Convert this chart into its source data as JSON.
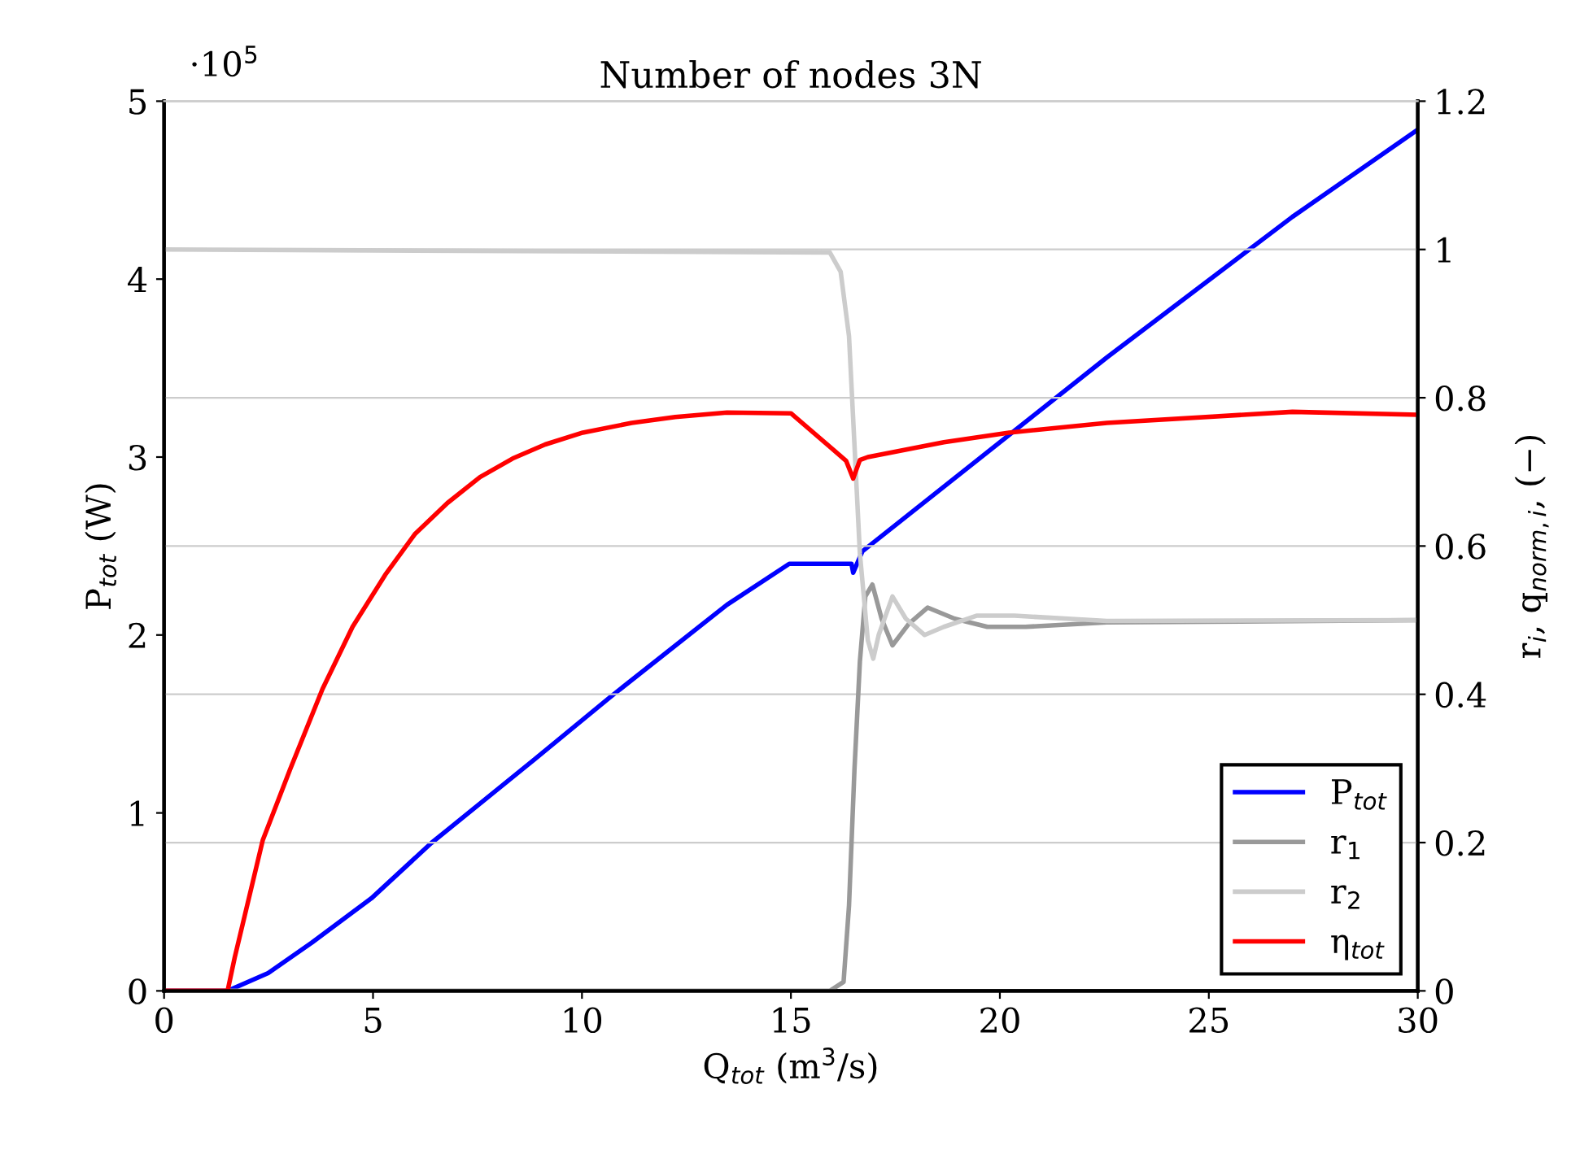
{
  "chart_data": {
    "type": "line",
    "title": "Number of nodes 3N",
    "xlabel": "Q$_{tot}$ (m$^{3}$/s)",
    "ylabel": "P$_{tot}$ (W)",
    "y2label": "r$_{i}$, q$_{norm,i}$, (−)",
    "annotations": [
      "·10$^{5}$"
    ],
    "xlim": [
      0,
      30
    ],
    "xticks": [
      0,
      5,
      10,
      15,
      20,
      25,
      30
    ],
    "ylim": [
      0,
      5
    ],
    "yticks": [
      0,
      1,
      2,
      3,
      4,
      5
    ],
    "y2lim": [
      0,
      1.2
    ],
    "y2ticks": [
      0,
      0.2,
      0.4,
      0.6,
      0.8,
      1,
      1.2
    ],
    "grid": "y2",
    "legend": "bottom right",
    "line_style": "solid",
    "marker": "none",
    "series": [
      {
        "name": "P$_{tot}$",
        "color": "#0000ff",
        "x": [
          0,
          1.52,
          2.49,
          3.53,
          4.96,
          6.39,
          8.86,
          10.67,
          13.47,
          14.96,
          16.45,
          16.49,
          16.71,
          22.56,
          27,
          30
        ],
        "values": [
          0,
          0,
          0.1,
          0.27,
          0.52,
          0.83,
          1.3,
          1.65,
          2.17,
          2.4,
          2.4,
          2.35,
          2.47,
          3.56,
          4.35,
          4.84
        ]
      },
      {
        "name": "r$_{1}$",
        "color": "#999999",
        "axis": "y2",
        "x": [
          0,
          15.93,
          16.26,
          16.39,
          16.52,
          16.65,
          16.78,
          16.95,
          17.17,
          17.43,
          17.82,
          18.27,
          18.92,
          19.7,
          20.61,
          22.56,
          30
        ],
        "values": [
          0,
          0,
          0.012,
          0.115,
          0.298,
          0.444,
          0.532,
          0.548,
          0.502,
          0.466,
          0.495,
          0.517,
          0.502,
          0.491,
          0.491,
          0.497,
          0.5
        ]
      },
      {
        "name": "r$_{2}$",
        "color": "#cccccc",
        "axis": "y2",
        "x": [
          0,
          15.93,
          16.19,
          16.39,
          16.52,
          16.65,
          16.84,
          16.97,
          17.1,
          17.43,
          17.75,
          18.2,
          18.66,
          19.44,
          20.35,
          22.56,
          30
        ],
        "values": [
          1,
          0.996,
          0.97,
          0.883,
          0.737,
          0.59,
          0.473,
          0.448,
          0.48,
          0.532,
          0.502,
          0.48,
          0.491,
          0.506,
          0.506,
          0.499,
          0.5
        ]
      },
      {
        "name": "η$_{tot}$",
        "color": "#ff0000",
        "axis": "y2",
        "x": [
          0,
          1.52,
          1.69,
          2.36,
          3.01,
          3.79,
          4.51,
          5.29,
          6.0,
          6.78,
          7.56,
          8.34,
          9.12,
          10.02,
          11.19,
          12.23,
          13.47,
          15.0,
          16.32,
          16.49,
          16.65,
          16.84,
          18.66,
          20.22,
          22.56,
          27,
          30
        ],
        "values": [
          0,
          0,
          0.045,
          0.203,
          0.298,
          0.407,
          0.491,
          0.561,
          0.616,
          0.658,
          0.693,
          0.718,
          0.737,
          0.753,
          0.766,
          0.774,
          0.78,
          0.779,
          0.715,
          0.691,
          0.716,
          0.72,
          0.74,
          0.753,
          0.766,
          0.781,
          0.777
        ]
      }
    ]
  }
}
